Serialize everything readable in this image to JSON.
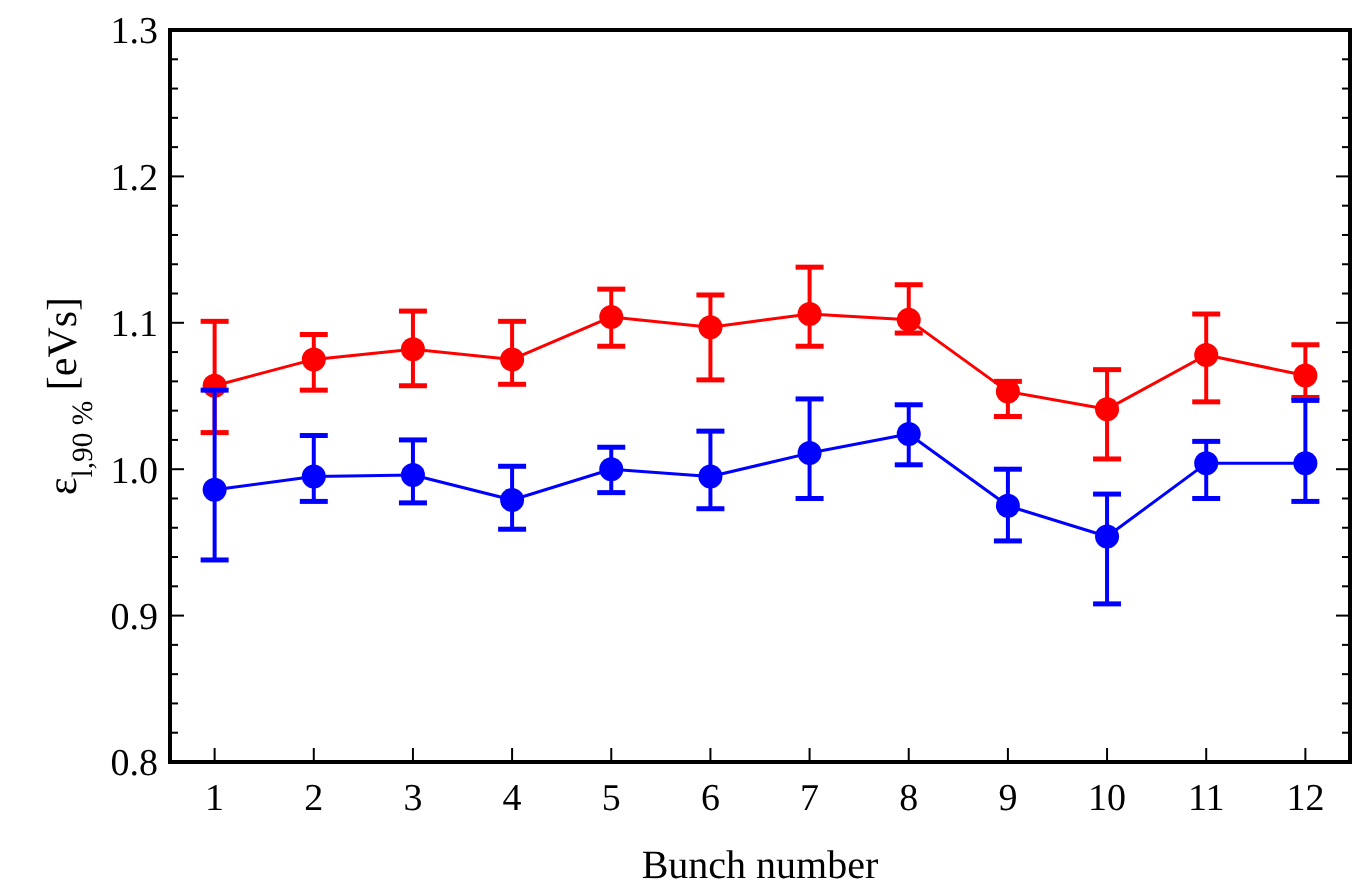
{
  "chart_data": {
    "type": "line",
    "xlabel": "Bunch number",
    "ylabel": "ε$_{l,90 %}$ [eVs]",
    "x": [
      1,
      2,
      3,
      4,
      5,
      6,
      7,
      8,
      9,
      10,
      11,
      12
    ],
    "xlim": [
      0.55,
      12.45
    ],
    "xticks": [
      1,
      2,
      3,
      4,
      5,
      6,
      7,
      8,
      9,
      10,
      11,
      12
    ],
    "ylim": [
      0.8,
      1.3
    ],
    "yticks": [
      {
        "value": 0.8,
        "label": "0.8"
      },
      {
        "value": 0.9,
        "label": "0.9"
      },
      {
        "value": 1.0,
        "label": "1.0"
      },
      {
        "value": 1.1,
        "label": "1.1"
      },
      {
        "value": 1.2,
        "label": "1.2"
      },
      {
        "value": 1.3,
        "label": "1.3"
      }
    ],
    "marker": "circle",
    "line_style": "solid",
    "grid": false,
    "series": [
      {
        "color": "#ff0000",
        "values": [
          1.057,
          1.075,
          1.082,
          1.075,
          1.104,
          1.097,
          1.106,
          1.102,
          1.053,
          1.041,
          1.078,
          1.064
        ],
        "errors": [
          [
            1.025,
            1.101
          ],
          [
            1.054,
            1.092
          ],
          [
            1.057,
            1.108
          ],
          [
            1.058,
            1.101
          ],
          [
            1.084,
            1.123
          ],
          [
            1.061,
            1.119
          ],
          [
            1.084,
            1.138
          ],
          [
            1.093,
            1.126
          ],
          [
            1.036,
            1.06
          ],
          [
            1.007,
            1.068
          ],
          [
            1.046,
            1.106
          ],
          [
            1.049,
            1.085
          ]
        ]
      },
      {
        "color": "#0000ff",
        "values": [
          0.986,
          0.995,
          0.996,
          0.979,
          1.0,
          0.995,
          1.011,
          1.024,
          0.975,
          0.954,
          1.004,
          1.004
        ],
        "errors": [
          [
            0.938,
            1.054
          ],
          [
            0.978,
            1.023
          ],
          [
            0.977,
            1.02
          ],
          [
            0.959,
            1.002
          ],
          [
            0.984,
            1.015
          ],
          [
            0.973,
            1.026
          ],
          [
            0.98,
            1.048
          ],
          [
            1.003,
            1.044
          ],
          [
            0.951,
            1.0
          ],
          [
            0.908,
            0.983
          ],
          [
            0.98,
            1.019
          ],
          [
            0.978,
            1.047
          ]
        ]
      }
    ]
  }
}
